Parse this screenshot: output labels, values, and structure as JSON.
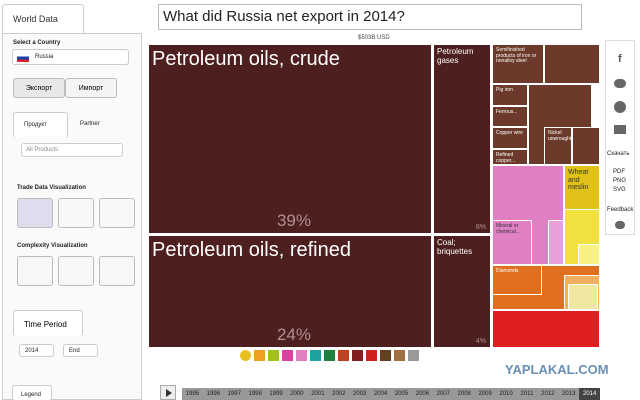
{
  "tab": "World Data",
  "question": "What did Russia net export in 2014?",
  "sidebar": {
    "select_country": "Select a Country",
    "country": "Russia",
    "export": "Экспорт",
    "import": "Импорт",
    "product_tab": "Продукт",
    "partner_tab": "Partner",
    "products": "All Products",
    "trade_viz": "Trade Data Visualization",
    "complexity_viz": "Complexity Visualization",
    "time_period": "Time Period",
    "start_year": "2014",
    "end_year": "End",
    "legend": "Legend"
  },
  "treemap": {
    "total": "$503B USD",
    "tiles": [
      {
        "label": "Petroleum oils, crude",
        "share": "39%"
      },
      {
        "label": "Petroleum oils, refined",
        "share": "24%"
      },
      {
        "label": "Petroleum gases",
        "share": "8%"
      },
      {
        "label": "Coal; briquettes",
        "share": "4%"
      },
      {
        "label": "Semifinished products of iron or nonalloy steel"
      },
      {
        "label": "Pig iron"
      },
      {
        "label": "Ferrous..."
      },
      {
        "label": "Copper wire"
      },
      {
        "label": "Refined copper..."
      },
      {
        "label": "Nickel unwrought"
      },
      {
        "label": "Wheat and meslin"
      },
      {
        "label": "Mineral or chemical..."
      },
      {
        "label": "Diamonds"
      }
    ]
  },
  "share_bar": {
    "download": "Скачать",
    "formats": [
      "PDF",
      "PNG",
      "SVG"
    ],
    "feedback": "Feedback"
  },
  "timeline": {
    "years": [
      1995,
      1996,
      1997,
      1998,
      1999,
      2000,
      2001,
      2002,
      2003,
      2004,
      2005,
      2006,
      2007,
      2008,
      2009,
      2010,
      2011,
      2012,
      2013,
      2014
    ]
  },
  "watermark": "YAPLAKAL.COM"
}
